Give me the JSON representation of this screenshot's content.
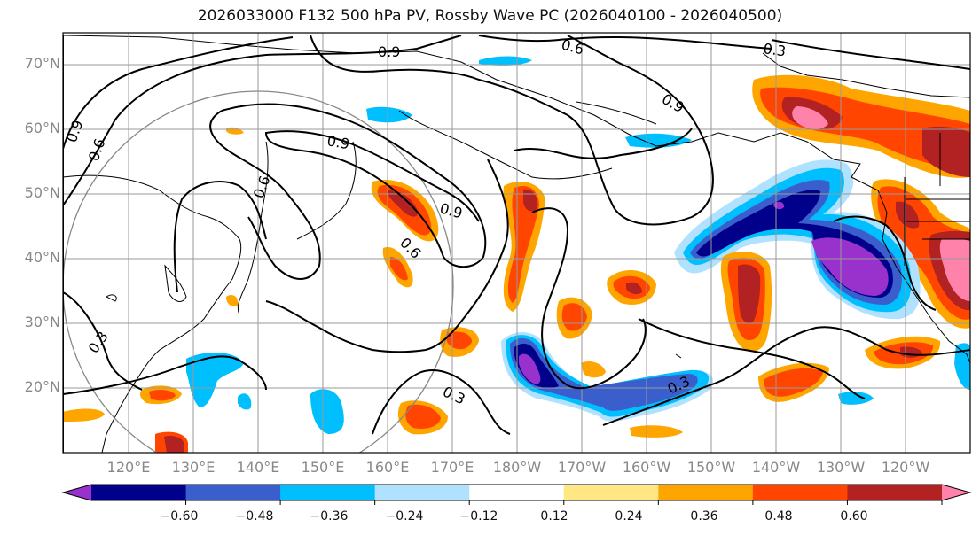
{
  "title": "2026033000 F132 500 hPa PV, Rossby Wave PC (2026040100 - 2026040500)",
  "map": {
    "lat_labels": [
      "70°N",
      "60°N",
      "50°N",
      "40°N",
      "30°N",
      "20°N"
    ],
    "lon_labels": [
      "120°E",
      "130°E",
      "140°E",
      "150°E",
      "160°E",
      "170°E",
      "180°W",
      "170°W",
      "160°W",
      "150°W",
      "140°W",
      "130°W",
      "120°W"
    ],
    "contour_labels": [
      "0.9",
      "0.6",
      "0.3",
      "0.9",
      "0.6",
      "0.9",
      "0.6",
      "0.9",
      "0.6",
      "0.3",
      "0.3",
      "0.3",
      "0.9"
    ],
    "colors": {
      "land_outline": "#000000",
      "grid": "#9a9a9a",
      "circle": "#888888"
    }
  },
  "colorbar": {
    "ticks": [
      "−0.60",
      "−0.48",
      "−0.36",
      "−0.24",
      "−0.12",
      "0.12",
      "0.24",
      "0.36",
      "0.48",
      "0.60"
    ],
    "colors": [
      "#9932cc",
      "#00008b",
      "#3a5fcd",
      "#00bfff",
      "#b0e2ff",
      "#ffffff",
      "#ffe884",
      "#ffa500",
      "#ff4500",
      "#b22222",
      "#ff82ab"
    ]
  }
}
